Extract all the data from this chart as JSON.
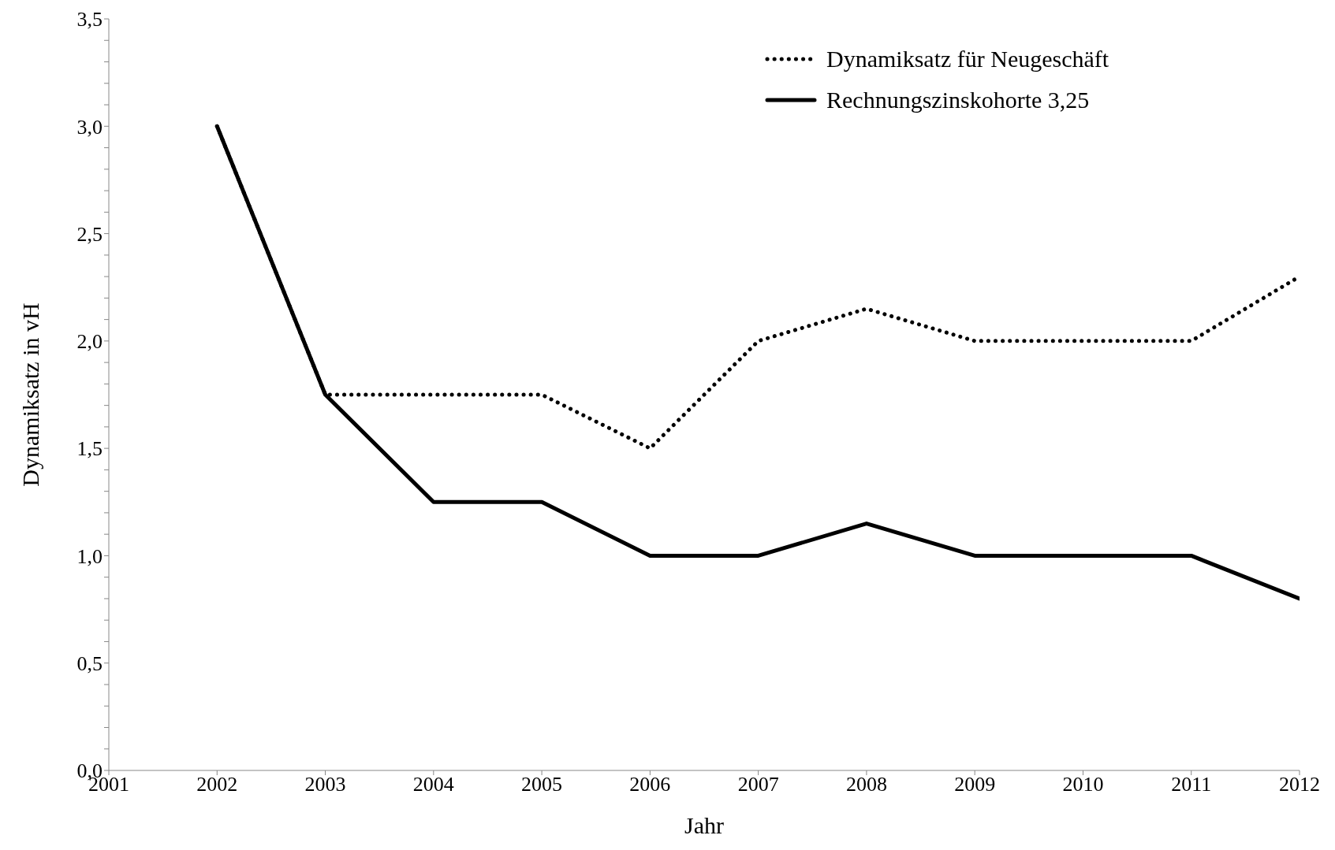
{
  "chart_data": {
    "type": "line",
    "xlabel": "Jahr",
    "ylabel": "Dynamiksatz in vH",
    "x": [
      2002,
      2003,
      2004,
      2005,
      2006,
      2007,
      2008,
      2009,
      2010,
      2011,
      2012
    ],
    "series": [
      {
        "name": "Dynamiksatz für Neugeschäft",
        "color": "#000000",
        "line_style": "dotted",
        "values": [
          3.0,
          1.75,
          1.75,
          1.75,
          1.5,
          2.0,
          2.15,
          2.0,
          2.0,
          2.0,
          2.3
        ]
      },
      {
        "name": "Rechnungszinskohorte 3,25",
        "color": "#000000",
        "line_style": "solid",
        "values": [
          3.0,
          1.75,
          1.25,
          1.25,
          1.0,
          1.0,
          1.15,
          1.0,
          1.0,
          1.0,
          0.8
        ]
      }
    ],
    "xlim": [
      2001,
      2012
    ],
    "xticks": [
      2001,
      2002,
      2003,
      2004,
      2005,
      2006,
      2007,
      2008,
      2009,
      2010,
      2011,
      2012
    ],
    "ylim": [
      0,
      3.5
    ],
    "yticks": [
      {
        "value": 0,
        "label": "0,0"
      },
      {
        "value": 0.1,
        "label": null
      },
      {
        "value": 0.2,
        "label": null
      },
      {
        "value": 0.3,
        "label": null
      },
      {
        "value": 0.4,
        "label": null
      },
      {
        "value": 0.5,
        "label": "0,5"
      },
      {
        "value": 0.6,
        "label": null
      },
      {
        "value": 0.7,
        "label": null
      },
      {
        "value": 0.8,
        "label": null
      },
      {
        "value": 0.9,
        "label": null
      },
      {
        "value": 1.0,
        "label": "1,0"
      },
      {
        "value": 1.1,
        "label": null
      },
      {
        "value": 1.2,
        "label": null
      },
      {
        "value": 1.3,
        "label": null
      },
      {
        "value": 1.4,
        "label": null
      },
      {
        "value": 1.5,
        "label": "1,5"
      },
      {
        "value": 1.6,
        "label": null
      },
      {
        "value": 1.7,
        "label": null
      },
      {
        "value": 1.8,
        "label": null
      },
      {
        "value": 1.9,
        "label": null
      },
      {
        "value": 2.0,
        "label": "2,0"
      },
      {
        "value": 2.1,
        "label": null
      },
      {
        "value": 2.2,
        "label": null
      },
      {
        "value": 2.3,
        "label": null
      },
      {
        "value": 2.4,
        "label": null
      },
      {
        "value": 2.5,
        "label": "2,5"
      },
      {
        "value": 2.6,
        "label": null
      },
      {
        "value": 2.7,
        "label": null
      },
      {
        "value": 2.8,
        "label": null
      },
      {
        "value": 2.9,
        "label": null
      },
      {
        "value": 3.0,
        "label": "3,0"
      },
      {
        "value": 3.1,
        "label": null
      },
      {
        "value": 3.2,
        "label": null
      },
      {
        "value": 3.3,
        "label": null
      },
      {
        "value": 3.4,
        "label": null
      },
      {
        "value": 3.5,
        "label": "3,5"
      }
    ],
    "grid": false,
    "legend": "top right",
    "marker": "none"
  }
}
